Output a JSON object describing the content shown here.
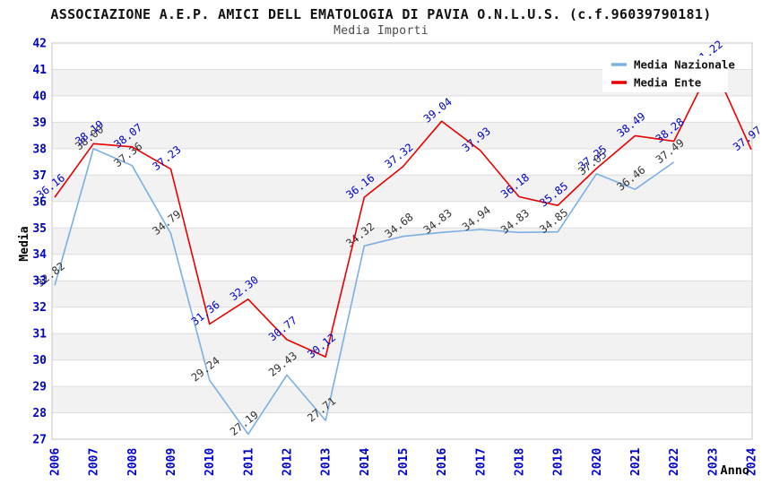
{
  "page": {
    "title": "ASSOCIAZIONE A.E.P. AMICI DELL EMATOLOGIA DI PAVIA O.N.L.U.S. (c.f.96039790181)",
    "subtitle": "Media Importi"
  },
  "chart_data": {
    "type": "line",
    "title": "ASSOCIAZIONE A.E.P. AMICI DELL EMATOLOGIA DI PAVIA O.N.L.U.S. (c.f.96039790181)",
    "subtitle": "Media Importi",
    "xlabel": "Anno",
    "ylabel": "Media",
    "ylim": [
      27,
      42
    ],
    "y_tick_step": 1,
    "grid": "horizontal gridlines with alternating gray bands",
    "legend_position": "top-right",
    "legend": [
      "Media Nazionale",
      "Media Ente"
    ],
    "x": [
      2006,
      2007,
      2008,
      2009,
      2010,
      2011,
      2012,
      2013,
      2014,
      2015,
      2016,
      2017,
      2018,
      2019,
      2020,
      2021,
      2022,
      2023,
      2024
    ],
    "series": [
      {
        "name": "Media Nazionale",
        "color": "#7CAFE4",
        "label_color": "#333333",
        "values": [
          32.82,
          38.0,
          37.36,
          34.79,
          29.24,
          27.19,
          29.43,
          27.71,
          34.32,
          34.68,
          34.83,
          34.94,
          34.83,
          34.85,
          37.05,
          36.46,
          37.49,
          null,
          null
        ]
      },
      {
        "name": "Media Ente",
        "color": "#E80000",
        "label_color": "#0000CC",
        "values": [
          36.16,
          38.19,
          38.07,
          37.23,
          31.36,
          32.3,
          30.77,
          30.12,
          36.16,
          37.32,
          39.04,
          37.93,
          36.18,
          35.85,
          37.25,
          38.49,
          38.28,
          41.22,
          37.97
        ]
      }
    ],
    "colors": {
      "axis_tick_label": "#0000CC",
      "axis_title": "#000000",
      "band_gray": "#F2F2F2",
      "gridline": "#DEDEDE",
      "plot_frame": "#C5C5C5",
      "legend_bg": "#FFFFFF",
      "legend_text": "#111111"
    }
  }
}
